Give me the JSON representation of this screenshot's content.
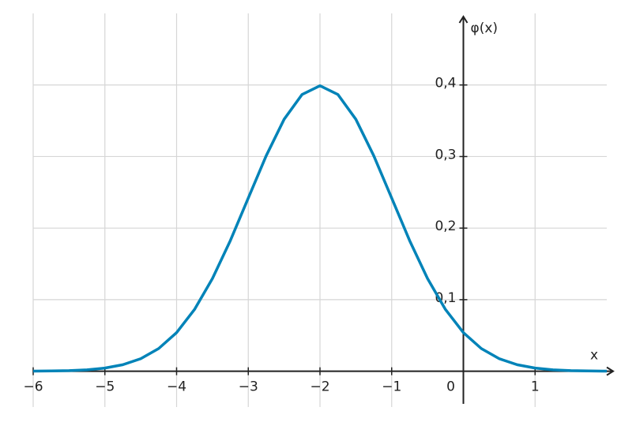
{
  "chart_data": {
    "type": "line",
    "x_label": "x",
    "y_label": "φ(x)",
    "x": [
      -6,
      -5.75,
      -5.5,
      -5.25,
      -5,
      -4.75,
      -4.5,
      -4.25,
      -4,
      -3.75,
      -3.5,
      -3.25,
      -3,
      -2.75,
      -2.5,
      -2.25,
      -2,
      -1.75,
      -1.5,
      -1.25,
      -1,
      -0.75,
      -0.5,
      -0.25,
      0,
      0.25,
      0.5,
      0.75,
      1,
      1.25,
      1.5,
      1.75,
      2
    ],
    "series": [
      {
        "color": "#0083b8",
        "values": [
          0.0001,
          0.0004,
          0.0009,
          0.002,
          0.0044,
          0.0091,
          0.0175,
          0.0317,
          0.054,
          0.0863,
          0.1295,
          0.1826,
          0.242,
          0.3011,
          0.3521,
          0.3867,
          0.3989,
          0.3867,
          0.3521,
          0.3011,
          0.242,
          0.1826,
          0.1295,
          0.0863,
          0.054,
          0.0317,
          0.0175,
          0.0091,
          0.0044,
          0.002,
          0.0009,
          0.0004,
          0.0001
        ]
      }
    ],
    "xlim": [
      -6,
      2
    ],
    "ylim": [
      -0.05,
      0.5
    ],
    "xticks": [
      {
        "value": -6,
        "label": "−6"
      },
      {
        "value": -5,
        "label": "−5"
      },
      {
        "value": -4,
        "label": "−4"
      },
      {
        "value": -3,
        "label": "−3"
      },
      {
        "value": -2,
        "label": "−2"
      },
      {
        "value": -1,
        "label": "−1"
      },
      0,
      1
    ],
    "yticks": [
      {
        "value": 0.1,
        "label": "0,1"
      },
      {
        "value": 0.2,
        "label": "0,2"
      },
      {
        "value": 0.3,
        "label": "0,3"
      },
      {
        "value": 0.4,
        "label": "0,4"
      }
    ],
    "grid": true
  }
}
